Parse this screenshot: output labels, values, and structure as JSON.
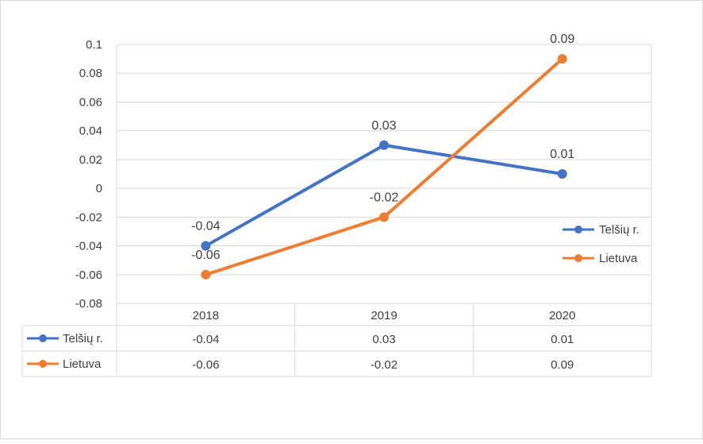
{
  "chart_data": {
    "type": "line",
    "title": "",
    "xlabel": "",
    "ylabel": "",
    "categories": [
      "2018",
      "2019",
      "2020"
    ],
    "ylim": [
      -0.08,
      0.1
    ],
    "yticks": [
      0.1,
      0.08,
      0.06,
      0.04,
      0.02,
      0,
      -0.02,
      -0.04,
      -0.06,
      -0.08
    ],
    "ytick_labels": [
      "0.1",
      "0.08",
      "0.06",
      "0.04",
      "0.02",
      "0",
      "-0.02",
      "-0.04",
      "-0.06",
      "-0.08"
    ],
    "grid": true,
    "legend_position": "right",
    "data_table": true,
    "series": [
      {
        "name": "Telšių r.",
        "values": [
          -0.04,
          0.03,
          0.01
        ],
        "labels": [
          "-0.04",
          "0.03",
          "0.01"
        ],
        "color": "#4472c4",
        "label_position": "above"
      },
      {
        "name": "Lietuva",
        "values": [
          -0.06,
          -0.02,
          0.09
        ],
        "labels": [
          "-0.06",
          "-0.02",
          "0.09"
        ],
        "color": "#ed7d31",
        "label_position": "above"
      }
    ]
  }
}
